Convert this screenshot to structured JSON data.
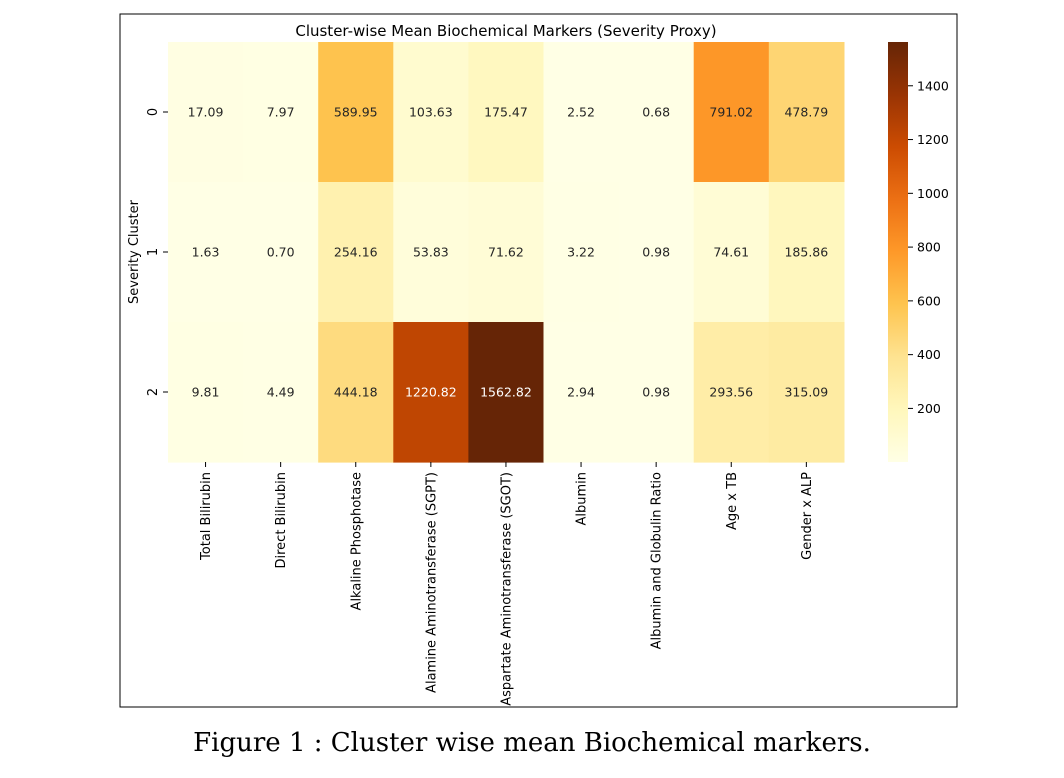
{
  "figure": {
    "caption": "Figure 1 : Cluster wise mean Biochemical markers."
  },
  "chart_data": {
    "type": "heatmap",
    "title": "Cluster-wise Mean Biochemical Markers (Severity Proxy)",
    "ylabel": "Severity Cluster",
    "xlabel": "",
    "columns": [
      "Total Bilirubin",
      "Direct Bilirubin",
      "Alkaline Phosphotase",
      "Alamine Aminotransferase (SGPT)",
      "Aspartate Aminotransferase (SGOT)",
      "Albumin",
      "Albumin and Globulin Ratio",
      "Age x TB",
      "Gender x ALP"
    ],
    "rows": [
      "0",
      "1",
      "2"
    ],
    "values": [
      [
        17.09,
        7.97,
        589.95,
        103.63,
        175.47,
        2.52,
        0.68,
        791.02,
        478.79
      ],
      [
        1.63,
        0.7,
        254.16,
        53.83,
        71.62,
        3.22,
        0.98,
        74.61,
        185.86
      ],
      [
        9.81,
        4.49,
        444.18,
        1220.82,
        1562.82,
        2.94,
        0.98,
        293.56,
        315.09
      ]
    ],
    "colormap": "YlOrBr",
    "colorbar": {
      "min": 0.68,
      "max": 1562.82,
      "ticks": [
        200,
        400,
        600,
        800,
        1000,
        1200,
        1400
      ]
    },
    "colors": [
      "#ffffe5",
      "#fff7bc",
      "#fee391",
      "#fec44f",
      "#fe9929",
      "#ec7014",
      "#cc4c02",
      "#993404",
      "#662506"
    ]
  }
}
